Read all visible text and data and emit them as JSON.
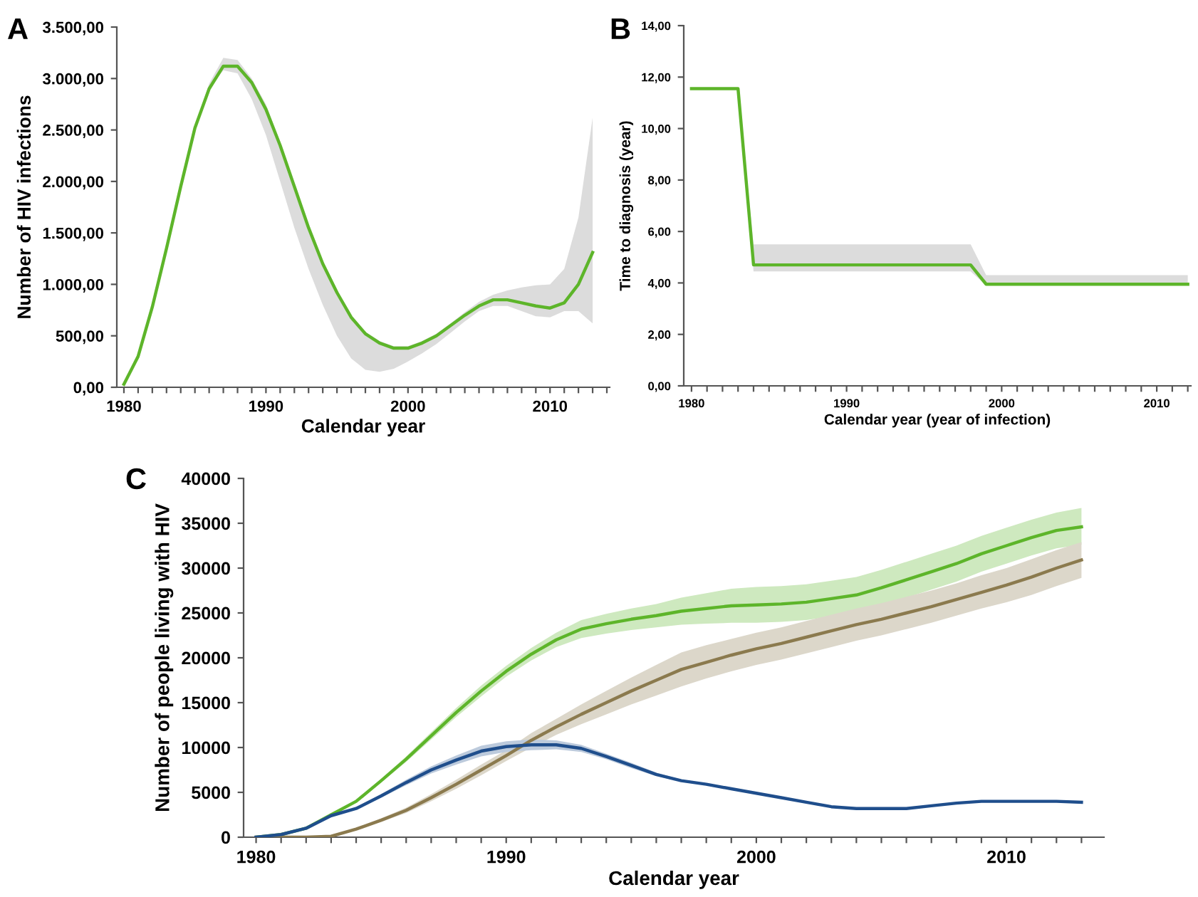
{
  "chart_data": [
    {
      "type": "line",
      "annotations": [
        "A"
      ],
      "xlabel": "Calendar year",
      "ylabel": "Number of HIV infections",
      "xlim": [
        1979.5,
        2014.2
      ],
      "xticks": [
        1980,
        {
          "value": 1981,
          "label": null
        },
        {
          "value": 1982,
          "label": null
        },
        {
          "value": 1983,
          "label": null
        },
        {
          "value": 1984,
          "label": null
        },
        {
          "value": 1985,
          "label": null
        },
        {
          "value": 1986,
          "label": null
        },
        {
          "value": 1987,
          "label": null
        },
        {
          "value": 1988,
          "label": null
        },
        {
          "value": 1989,
          "label": null
        },
        1990,
        {
          "value": 1991,
          "label": null
        },
        {
          "value": 1992,
          "label": null
        },
        {
          "value": 1993,
          "label": null
        },
        {
          "value": 1994,
          "label": null
        },
        {
          "value": 1995,
          "label": null
        },
        {
          "value": 1996,
          "label": null
        },
        {
          "value": 1997,
          "label": null
        },
        {
          "value": 1998,
          "label": null
        },
        {
          "value": 1999,
          "label": null
        },
        2000,
        {
          "value": 2001,
          "label": null
        },
        {
          "value": 2002,
          "label": null
        },
        {
          "value": 2003,
          "label": null
        },
        {
          "value": 2004,
          "label": null
        },
        {
          "value": 2005,
          "label": null
        },
        {
          "value": 2006,
          "label": null
        },
        {
          "value": 2007,
          "label": null
        },
        {
          "value": 2008,
          "label": null
        },
        {
          "value": 2009,
          "label": null
        },
        2010,
        {
          "value": 2011,
          "label": null
        },
        {
          "value": 2012,
          "label": null
        },
        {
          "value": 2013,
          "label": null
        },
        {
          "value": 2014,
          "label": null
        }
      ],
      "ylim": [
        0,
        3500
      ],
      "yticks": [
        {
          "value": 0,
          "label": "0,00"
        },
        {
          "value": 500,
          "label": "500,00"
        },
        {
          "value": 1000,
          "label": "1.000,00"
        },
        {
          "value": 1500,
          "label": "1.500,00"
        },
        {
          "value": 2000,
          "label": "2.000,00"
        },
        {
          "value": 2500,
          "label": "2.500,00"
        },
        {
          "value": 3000,
          "label": "3.000,00"
        },
        {
          "value": 3500,
          "label": "3.500,00"
        }
      ],
      "grid": false,
      "series": [
        {
          "color": "#5db52a",
          "x": [
            1980,
            1981,
            1982,
            1983,
            1984,
            1985,
            1986,
            1987,
            1988,
            1989,
            1990,
            1991,
            1992,
            1993,
            1994,
            1995,
            1996,
            1997,
            1998,
            1999,
            2000,
            2001,
            2002,
            2003,
            2004,
            2005,
            2006,
            2007,
            2008,
            2009,
            2010,
            2011,
            2012,
            2013
          ],
          "values": [
            30,
            300,
            780,
            1350,
            1950,
            2520,
            2900,
            3120,
            3120,
            2960,
            2700,
            2350,
            1950,
            1550,
            1200,
            920,
            680,
            520,
            430,
            380,
            380,
            430,
            500,
            600,
            700,
            790,
            850,
            850,
            820,
            790,
            770,
            820,
            1000,
            1310
          ],
          "lower": [
            30,
            300,
            780,
            1350,
            1950,
            2520,
            2900,
            3080,
            3050,
            2800,
            2450,
            2000,
            1550,
            1150,
            800,
            500,
            280,
            170,
            150,
            180,
            250,
            330,
            420,
            530,
            640,
            740,
            790,
            790,
            740,
            690,
            680,
            740,
            740,
            620
          ],
          "upper": [
            30,
            300,
            780,
            1350,
            1950,
            2520,
            2950,
            3200,
            3180,
            3000,
            2750,
            2380,
            1980,
            1580,
            1230,
            950,
            700,
            540,
            450,
            400,
            400,
            450,
            520,
            620,
            730,
            830,
            900,
            940,
            970,
            990,
            1000,
            1150,
            1650,
            2620
          ]
        }
      ]
    },
    {
      "type": "line",
      "annotations": [
        "B"
      ],
      "xlabel": "Calendar year (year of infection)",
      "ylabel": "Time to diagnosis (year)",
      "xlim": [
        1979.5,
        2012.2
      ],
      "xticks": [
        1980,
        {
          "value": 1981,
          "label": null
        },
        {
          "value": 1982,
          "label": null
        },
        {
          "value": 1983,
          "label": null
        },
        {
          "value": 1984,
          "label": null
        },
        {
          "value": 1985,
          "label": null
        },
        {
          "value": 1986,
          "label": null
        },
        {
          "value": 1987,
          "label": null
        },
        {
          "value": 1988,
          "label": null
        },
        {
          "value": 1989,
          "label": null
        },
        1990,
        {
          "value": 1991,
          "label": null
        },
        {
          "value": 1992,
          "label": null
        },
        {
          "value": 1993,
          "label": null
        },
        {
          "value": 1994,
          "label": null
        },
        {
          "value": 1995,
          "label": null
        },
        {
          "value": 1996,
          "label": null
        },
        {
          "value": 1997,
          "label": null
        },
        {
          "value": 1998,
          "label": null
        },
        {
          "value": 1999,
          "label": null
        },
        2000,
        {
          "value": 2001,
          "label": null
        },
        {
          "value": 2002,
          "label": null
        },
        {
          "value": 2003,
          "label": null
        },
        {
          "value": 2004,
          "label": null
        },
        {
          "value": 2005,
          "label": null
        },
        {
          "value": 2006,
          "label": null
        },
        {
          "value": 2007,
          "label": null
        },
        {
          "value": 2008,
          "label": null
        },
        {
          "value": 2009,
          "label": null
        },
        2010,
        {
          "value": 2011,
          "label": null
        },
        {
          "value": 2012,
          "label": null
        }
      ],
      "ylim": [
        0,
        14
      ],
      "yticks": [
        {
          "value": 0,
          "label": "0,00"
        },
        {
          "value": 2,
          "label": "2,00"
        },
        {
          "value": 4,
          "label": "4,00"
        },
        {
          "value": 6,
          "label": "6,00"
        },
        {
          "value": 8,
          "label": "8,00"
        },
        {
          "value": 10,
          "label": "10,00"
        },
        {
          "value": 12,
          "label": "12,00"
        },
        {
          "value": 14,
          "label": "14,00"
        }
      ],
      "grid": false,
      "series": [
        {
          "color": "#5db52a",
          "x": [
            1980,
            1983,
            1984,
            1998,
            1999,
            2012
          ],
          "values": [
            11.55,
            11.55,
            4.7,
            4.7,
            3.95,
            3.95
          ],
          "lower": [
            11.55,
            11.55,
            4.45,
            4.45,
            3.9,
            3.9
          ],
          "upper": [
            11.55,
            11.55,
            5.5,
            5.5,
            4.3,
            4.3
          ]
        }
      ]
    },
    {
      "type": "line",
      "annotations": [
        "C"
      ],
      "xlabel": "Calendar year",
      "ylabel": "Number of people living with HIV",
      "xlim": [
        1979.5,
        2013.9
      ],
      "xticks": [
        1980,
        {
          "value": 1981,
          "label": null
        },
        {
          "value": 1982,
          "label": null
        },
        {
          "value": 1983,
          "label": null
        },
        {
          "value": 1984,
          "label": null
        },
        {
          "value": 1985,
          "label": null
        },
        {
          "value": 1986,
          "label": null
        },
        {
          "value": 1987,
          "label": null
        },
        {
          "value": 1988,
          "label": null
        },
        {
          "value": 1989,
          "label": null
        },
        1990,
        {
          "value": 1991,
          "label": null
        },
        {
          "value": 1992,
          "label": null
        },
        {
          "value": 1993,
          "label": null
        },
        {
          "value": 1994,
          "label": null
        },
        {
          "value": 1995,
          "label": null
        },
        {
          "value": 1996,
          "label": null
        },
        {
          "value": 1997,
          "label": null
        },
        {
          "value": 1998,
          "label": null
        },
        {
          "value": 1999,
          "label": null
        },
        2000,
        {
          "value": 2001,
          "label": null
        },
        {
          "value": 2002,
          "label": null
        },
        {
          "value": 2003,
          "label": null
        },
        {
          "value": 2004,
          "label": null
        },
        {
          "value": 2005,
          "label": null
        },
        {
          "value": 2006,
          "label": null
        },
        {
          "value": 2007,
          "label": null
        },
        {
          "value": 2008,
          "label": null
        },
        {
          "value": 2009,
          "label": null
        },
        2010,
        {
          "value": 2011,
          "label": null
        },
        {
          "value": 2012,
          "label": null
        },
        {
          "value": 2013,
          "label": null
        }
      ],
      "ylim": [
        0,
        40000
      ],
      "yticks": [
        0,
        5000,
        10000,
        15000,
        20000,
        25000,
        30000,
        35000,
        40000
      ],
      "grid": false,
      "series": [
        {
          "color": "#5db52a",
          "x": [
            1980,
            1981,
            1982,
            1983,
            1984,
            1985,
            1986,
            1987,
            1988,
            1989,
            1990,
            1991,
            1992,
            1993,
            1994,
            1995,
            1996,
            1997,
            1998,
            1999,
            2000,
            2001,
            2002,
            2003,
            2004,
            2005,
            2006,
            2007,
            2008,
            2009,
            2010,
            2011,
            2012,
            2013
          ],
          "values": [
            0,
            300,
            1000,
            2500,
            4000,
            6300,
            8700,
            11300,
            13900,
            16300,
            18500,
            20400,
            22000,
            23200,
            23800,
            24300,
            24700,
            25200,
            25500,
            25800,
            25900,
            26000,
            26200,
            26600,
            27000,
            27800,
            28700,
            29600,
            30500,
            31600,
            32500,
            33400,
            34200,
            34600
          ],
          "lower": [
            0,
            300,
            1000,
            2500,
            3900,
            6100,
            8400,
            10900,
            13400,
            15700,
            17900,
            19700,
            21200,
            22200,
            22700,
            23100,
            23400,
            23700,
            23800,
            23900,
            23900,
            24000,
            24200,
            24600,
            25000,
            25800,
            26700,
            27600,
            28500,
            29600,
            30500,
            31400,
            32200,
            32600
          ],
          "upper": [
            0,
            300,
            1000,
            2500,
            4100,
            6500,
            9000,
            11700,
            14400,
            16900,
            19100,
            21100,
            22800,
            24200,
            24900,
            25500,
            26000,
            26700,
            27200,
            27700,
            27900,
            28000,
            28200,
            28600,
            29000,
            29800,
            30700,
            31600,
            32500,
            33600,
            34500,
            35400,
            36200,
            36700
          ]
        },
        {
          "color": "#8b7a4e",
          "x": [
            1980,
            1981,
            1982,
            1983,
            1984,
            1985,
            1986,
            1987,
            1988,
            1989,
            1990,
            1991,
            1992,
            1993,
            1994,
            1995,
            1996,
            1997,
            1998,
            1999,
            2000,
            2001,
            2002,
            2003,
            2004,
            2005,
            2006,
            2007,
            2008,
            2009,
            2010,
            2011,
            2012,
            2013
          ],
          "values": [
            0,
            0,
            0,
            100,
            900,
            1900,
            3000,
            4400,
            5900,
            7500,
            9100,
            10800,
            12300,
            13700,
            15000,
            16300,
            17500,
            18700,
            19500,
            20300,
            21000,
            21600,
            22300,
            23000,
            23700,
            24300,
            25000,
            25700,
            26500,
            27300,
            28100,
            29000,
            30000,
            30900
          ],
          "lower": [
            0,
            0,
            0,
            100,
            800,
            1700,
            2700,
            4000,
            5400,
            6900,
            8500,
            10000,
            11400,
            12600,
            13700,
            14800,
            15800,
            16800,
            17700,
            18500,
            19200,
            19800,
            20500,
            21200,
            21900,
            22500,
            23200,
            23900,
            24700,
            25500,
            26200,
            27000,
            28000,
            28900
          ],
          "upper": [
            0,
            0,
            0,
            100,
            1000,
            2100,
            3300,
            4800,
            6400,
            8100,
            9700,
            11600,
            13200,
            14800,
            16300,
            17800,
            19200,
            20600,
            21400,
            22100,
            22800,
            23400,
            24100,
            24800,
            25500,
            26100,
            26800,
            27500,
            28300,
            29200,
            30000,
            31000,
            32000,
            32900
          ]
        },
        {
          "color": "#1f4e8c",
          "x": [
            1980,
            1981,
            1982,
            1983,
            1984,
            1985,
            1986,
            1987,
            1988,
            1989,
            1990,
            1991,
            1992,
            1993,
            1994,
            1995,
            1996,
            1997,
            1998,
            1999,
            2000,
            2001,
            2002,
            2003,
            2004,
            2005,
            2006,
            2007,
            2008,
            2009,
            2010,
            2011,
            2012,
            2013
          ],
          "values": [
            0,
            300,
            1000,
            2400,
            3200,
            4600,
            6100,
            7500,
            8600,
            9600,
            10100,
            10300,
            10300,
            9900,
            9000,
            8000,
            7000,
            6300,
            5900,
            5400,
            4900,
            4400,
            3900,
            3400,
            3200,
            3200,
            3200,
            3500,
            3800,
            4000,
            4000,
            4000,
            4000,
            3900
          ],
          "lower": [
            0,
            300,
            1000,
            2400,
            3100,
            4400,
            5800,
            7100,
            8100,
            9000,
            9500,
            9700,
            9800,
            9500,
            8700,
            7700,
            6800,
            6200,
            5800,
            5300,
            4800,
            4300,
            3800,
            3300,
            3100,
            3100,
            3100,
            3400,
            3700,
            3900,
            3900,
            3900,
            3900,
            3800
          ],
          "upper": [
            0,
            300,
            1000,
            2400,
            3300,
            4800,
            6400,
            7900,
            9100,
            10200,
            10700,
            10900,
            10800,
            10300,
            9300,
            8300,
            7200,
            6400,
            6000,
            5500,
            5000,
            4500,
            4000,
            3500,
            3300,
            3300,
            3300,
            3600,
            3900,
            4100,
            4100,
            4100,
            4100,
            4000
          ]
        }
      ]
    }
  ]
}
